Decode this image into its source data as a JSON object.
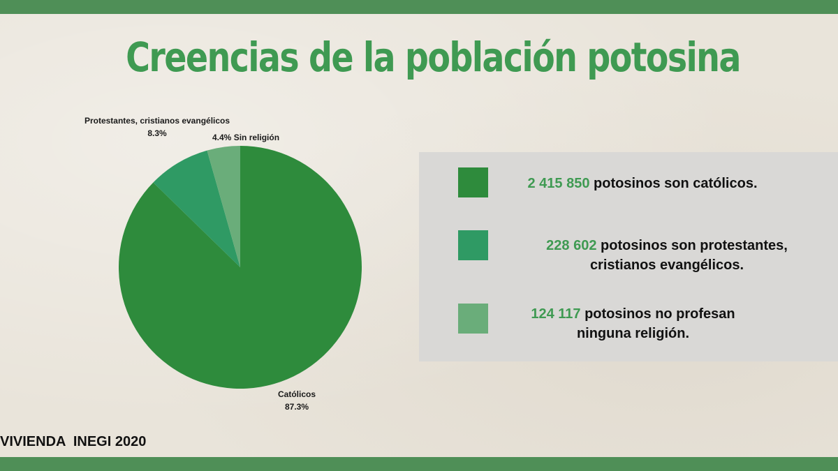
{
  "title": "Creencias de la población potosina",
  "chart_data": {
    "type": "pie",
    "slices": [
      {
        "name": "Católicos",
        "pct_label": "87.3%",
        "value": 87.3,
        "color": "#2e8b3c"
      },
      {
        "name": "Protestantes, cristianos evangélicos",
        "pct_label": "8.3%",
        "value": 8.3,
        "color": "#2f9a64"
      },
      {
        "name": "Sin religión",
        "pct_label": "4.4%",
        "value": 4.4,
        "color": "#6aad7a"
      }
    ],
    "start": "12 o'clock",
    "direction": "clockwise"
  },
  "legend": [
    {
      "number": "2 415 850",
      "line1_rest": " potosinos son católicos.",
      "line2": "",
      "color": "#2e8b3c"
    },
    {
      "number": "228 602",
      "line1_rest": " potosinos  son protestantes,",
      "line2": "cristianos evangélicos.",
      "color": "#2f9a64"
    },
    {
      "number": "124 117",
      "line1_rest": " potosinos no profesan",
      "line2": "ninguna religión.",
      "color": "#6aad7a"
    }
  ],
  "source": "VIVIENDA  INEGI 2020"
}
